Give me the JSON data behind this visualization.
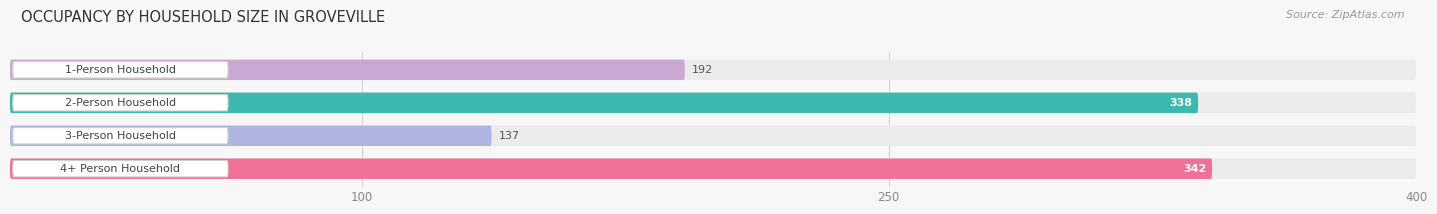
{
  "title": "OCCUPANCY BY HOUSEHOLD SIZE IN GROVEVILLE",
  "source": "Source: ZipAtlas.com",
  "categories": [
    "1-Person Household",
    "2-Person Household",
    "3-Person Household",
    "4+ Person Household"
  ],
  "values": [
    192,
    338,
    137,
    342
  ],
  "bar_colors": [
    "#c9a8d4",
    "#3db8b0",
    "#b0b4e0",
    "#f07098"
  ],
  "bar_bg_color": "#ebebeb",
  "label_bg_color": "#ffffff",
  "xmin": 0,
  "xmax": 400,
  "xticks": [
    100,
    250,
    400
  ],
  "title_fontsize": 10.5,
  "source_fontsize": 8,
  "label_fontsize": 8,
  "value_fontsize": 8,
  "tick_fontsize": 8.5,
  "figure_bg": "#f7f7f7",
  "bar_bg_shadow": "#d8d8d8"
}
